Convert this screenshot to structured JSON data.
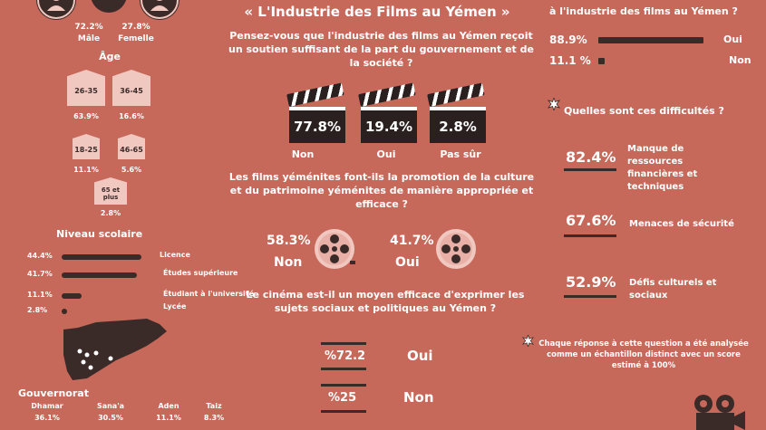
{
  "colors": {
    "background": "#c6685a",
    "dark": "#3a2a28",
    "light": "#f0c8c0"
  },
  "title": "« L'Industrie des Films au Yémen »",
  "gender": {
    "male_pct": "72.2%",
    "male_label": "Mâle",
    "female_pct": "27.8%",
    "female_label": "Femelle"
  },
  "age": {
    "heading": "Âge",
    "groups": [
      {
        "range": "26-35",
        "pct": "63.9%"
      },
      {
        "range": "36-45",
        "pct": "16.6%"
      },
      {
        "range": "18-25",
        "pct": "11.1%"
      },
      {
        "range": "46-65",
        "pct": "5.6%"
      },
      {
        "range": "65 et plus",
        "pct": "2.8%"
      }
    ]
  },
  "education": {
    "heading": "Niveau scolaire",
    "items": [
      {
        "pct": "44.4%",
        "label": "Licence",
        "value": 44.4
      },
      {
        "pct": "41.7%",
        "label": "Études supérieure",
        "value": 41.7
      },
      {
        "pct": "11.1%",
        "label": "Étudiant à l'université",
        "value": 11.1
      },
      {
        "pct": "2.8%",
        "label": "Lycée",
        "value": 2.8
      }
    ]
  },
  "governorate": {
    "heading": "Gouvernorat",
    "items": [
      {
        "name": "Dhamar",
        "pct": "36.1%"
      },
      {
        "name": "Sana'a",
        "pct": "30.5%"
      },
      {
        "name": "Aden",
        "pct": "11.1%"
      },
      {
        "name": "Taiz",
        "pct": "8.3%"
      }
    ]
  },
  "q1": {
    "question": "Pensez-vous que l'industrie des films au Yémen reçoit un soutien suffisant de la part du gouvernement et de la société ?",
    "answers": [
      {
        "value": "77.8%",
        "label": "Non"
      },
      {
        "value": "19.4%",
        "label": "Oui"
      },
      {
        "value": "2.8%",
        "label": "Pas sûr"
      }
    ]
  },
  "q2": {
    "question": "Les films yéménites font-ils la promotion de la culture et du patrimoine yéménites de manière appropriée et efficace ?",
    "non_value": "58.3%",
    "non_label": "Non",
    "oui_value": "41.7%",
    "oui_label": "Oui"
  },
  "q3": {
    "question": "Le cinéma est-il un moyen efficace d'exprimer les sujets sociaux et politiques au Yémen ?",
    "oui_value": "%72.2",
    "oui_label": "Oui",
    "non_value": "%25",
    "non_label": "Non"
  },
  "q4": {
    "question_tail": "à l'industrie des films au Yémen ?",
    "oui_pct": "88.9%",
    "oui_label": "Oui",
    "oui_value": 88.9,
    "non_pct": "11.1 %",
    "non_label": "Non",
    "non_value": 11.1
  },
  "difficulties": {
    "heading": "Quelles sont ces difficultés ?",
    "items": [
      {
        "pct": "82.4%",
        "label": "Manque de ressources financières et techniques"
      },
      {
        "pct": "67.6%",
        "label": "Menaces de sécurité"
      },
      {
        "pct": "52.9%",
        "label": "Défis culturels et sociaux"
      }
    ],
    "note": "Chaque réponse à cette question a été analysée comme un échantillon distinct avec un score estimé à 100%"
  }
}
